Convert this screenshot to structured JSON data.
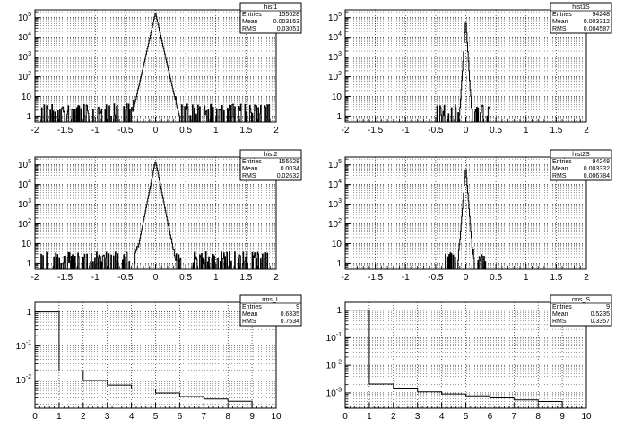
{
  "chart_data": [
    {
      "type": "histogram",
      "stats": {
        "name": "hist1",
        "entries_label": "Entries",
        "entries": "155628",
        "mean_label": "Mean",
        "mean": "0.003153",
        "rms_label": "RMS",
        "rms": "0.03051"
      },
      "x_ticks": [
        "-2",
        "-1.5",
        "-1",
        "-0.5",
        "0",
        "0.5",
        "1",
        "1.5",
        "2"
      ],
      "x_tick_values": [
        -2,
        -1.5,
        -1,
        -0.5,
        0,
        0.5,
        1,
        1.5,
        2
      ],
      "y_ticks": [
        {
          "base": "1",
          "exp": ""
        },
        {
          "base": "10",
          "exp": ""
        },
        {
          "base": "10",
          "exp": "2"
        },
        {
          "base": "10",
          "exp": "3"
        },
        {
          "base": "10",
          "exp": "4"
        },
        {
          "base": "10",
          "exp": "5"
        }
      ],
      "y_tick_values": [
        1,
        10,
        100,
        1000,
        10000,
        100000
      ],
      "xlim": [
        -2,
        2
      ],
      "ylog": true,
      "ylim": [
        0.5,
        250000
      ],
      "grid": true,
      "stats_box": "top-right",
      "profile": "peak",
      "peak_value": 180000,
      "decay": 0.032,
      "floor": 1.3,
      "noise_range": [
        -1.9,
        1.9
      ],
      "noise_level": 1.4
    },
    {
      "type": "histogram",
      "stats": {
        "name": "hist1S",
        "entries_label": "Entries",
        "entries": "94248",
        "mean_label": "Mean",
        "mean": "0.003312",
        "rms_label": "RMS",
        "rms": "0.004587"
      },
      "x_ticks": [
        "-2",
        "-1.5",
        "-1",
        "-0.5",
        "0",
        "0.5",
        "1",
        "1.5",
        "2"
      ],
      "x_tick_values": [
        -2,
        -1.5,
        -1,
        -0.5,
        0,
        0.5,
        1,
        1.5,
        2
      ],
      "y_ticks": [
        {
          "base": "1",
          "exp": ""
        },
        {
          "base": "10",
          "exp": ""
        },
        {
          "base": "10",
          "exp": "2"
        },
        {
          "base": "10",
          "exp": "3"
        },
        {
          "base": "10",
          "exp": "4"
        },
        {
          "base": "10",
          "exp": "5"
        }
      ],
      "y_tick_values": [
        1,
        10,
        100,
        1000,
        10000,
        100000
      ],
      "xlim": [
        -2,
        2
      ],
      "ylog": true,
      "ylim": [
        0.5,
        250000
      ],
      "grid": true,
      "stats_box": "top-right",
      "profile": "peak",
      "peak_value": 90000,
      "decay": 0.009,
      "floor": 0.6,
      "noise_range": [
        -0.5,
        0.4
      ],
      "noise_level": 1.2
    },
    {
      "type": "histogram",
      "stats": {
        "name": "hist2",
        "entries_label": "Entries",
        "entries": "155628",
        "mean_label": "Mean",
        "mean": "0.0034",
        "rms_label": "RMS",
        "rms": "0.02632"
      },
      "x_ticks": [
        "-2",
        "-1.5",
        "-1",
        "-0.5",
        "0",
        "0.5",
        "1",
        "1.5",
        "2"
      ],
      "x_tick_values": [
        -2,
        -1.5,
        -1,
        -0.5,
        0,
        0.5,
        1,
        1.5,
        2
      ],
      "y_ticks": [
        {
          "base": "1",
          "exp": ""
        },
        {
          "base": "10",
          "exp": ""
        },
        {
          "base": "10",
          "exp": "2"
        },
        {
          "base": "10",
          "exp": "3"
        },
        {
          "base": "10",
          "exp": "4"
        },
        {
          "base": "10",
          "exp": "5"
        }
      ],
      "y_tick_values": [
        1,
        10,
        100,
        1000,
        10000,
        100000
      ],
      "xlim": [
        -2,
        2
      ],
      "ylog": true,
      "ylim": [
        0.5,
        250000
      ],
      "grid": true,
      "stats_box": "top-right",
      "profile": "peak",
      "peak_value": 170000,
      "decay": 0.028,
      "floor": 1.1,
      "noise_range": [
        -1.9,
        1.9
      ],
      "noise_level": 1.3
    },
    {
      "type": "histogram",
      "stats": {
        "name": "hist2S",
        "entries_label": "Entries",
        "entries": "94248",
        "mean_label": "Mean",
        "mean": "0.003332",
        "rms_label": "RMS",
        "rms": "0.006784"
      },
      "x_ticks": [
        "-2",
        "-1.5",
        "-1",
        "-0.5",
        "0",
        "0.5",
        "1",
        "1.5",
        "2"
      ],
      "x_tick_values": [
        -2,
        -1.5,
        -1,
        -0.5,
        0,
        0.5,
        1,
        1.5,
        2
      ],
      "y_ticks": [
        {
          "base": "1",
          "exp": ""
        },
        {
          "base": "10",
          "exp": ""
        },
        {
          "base": "10",
          "exp": "2"
        },
        {
          "base": "10",
          "exp": "3"
        },
        {
          "base": "10",
          "exp": "4"
        },
        {
          "base": "10",
          "exp": "5"
        }
      ],
      "y_tick_values": [
        1,
        10,
        100,
        1000,
        10000,
        100000
      ],
      "xlim": [
        -2,
        2
      ],
      "ylog": true,
      "ylim": [
        0.5,
        250000
      ],
      "grid": true,
      "stats_box": "top-right",
      "profile": "peak",
      "peak_value": 88000,
      "decay": 0.011,
      "floor": 0.6,
      "noise_range": [
        -0.35,
        0.35
      ],
      "noise_level": 1.2
    },
    {
      "type": "histogram",
      "stats": {
        "name": "rms_L",
        "entries_label": "Entries",
        "entries": "9",
        "mean_label": "Mean",
        "mean": "0.6335",
        "rms_label": "RMS",
        "rms": "0.7534"
      },
      "x_ticks": [
        "0",
        "1",
        "2",
        "3",
        "4",
        "5",
        "6",
        "7",
        "8",
        "9",
        "10"
      ],
      "x_tick_values": [
        0,
        1,
        2,
        3,
        4,
        5,
        6,
        7,
        8,
        9,
        10
      ],
      "y_ticks": [
        {
          "base": "10",
          "exp": "-2"
        },
        {
          "base": "10",
          "exp": "-1"
        },
        {
          "base": "1",
          "exp": ""
        }
      ],
      "y_tick_values": [
        0.01,
        0.1,
        1
      ],
      "xlim": [
        0,
        10
      ],
      "ylog": true,
      "ylim": [
        0.0015,
        1.9
      ],
      "grid": true,
      "stats_box": "top-right",
      "profile": "steps",
      "bins": [
        [
          0,
          1,
          1.0
        ],
        [
          1,
          2,
          0.0185
        ],
        [
          2,
          3,
          0.0098
        ],
        [
          3,
          4,
          0.0072
        ],
        [
          4,
          5,
          0.0055
        ],
        [
          5,
          6,
          0.0042
        ],
        [
          6,
          7,
          0.0033
        ],
        [
          7,
          8,
          0.0028
        ],
        [
          8,
          9,
          0.0024
        ]
      ]
    },
    {
      "type": "histogram",
      "stats": {
        "name": "rms_S",
        "entries_label": "Entries",
        "entries": "9",
        "mean_label": "Mean",
        "mean": "0.5235",
        "rms_label": "RMS",
        "rms": "0.3357"
      },
      "x_ticks": [
        "0",
        "1",
        "2",
        "3",
        "4",
        "5",
        "6",
        "7",
        "8",
        "9",
        "10"
      ],
      "x_tick_values": [
        0,
        1,
        2,
        3,
        4,
        5,
        6,
        7,
        8,
        9,
        10
      ],
      "y_ticks": [
        {
          "base": "10",
          "exp": "-3"
        },
        {
          "base": "10",
          "exp": "-2"
        },
        {
          "base": "10",
          "exp": "-1"
        },
        {
          "base": "1",
          "exp": ""
        }
      ],
      "y_tick_values": [
        0.001,
        0.01,
        0.1,
        1
      ],
      "xlim": [
        0,
        10
      ],
      "ylog": true,
      "ylim": [
        0.00028,
        1.9
      ],
      "grid": true,
      "stats_box": "top-right",
      "profile": "steps",
      "bins": [
        [
          0,
          1,
          1.0
        ],
        [
          1,
          2,
          0.0021
        ],
        [
          2,
          3,
          0.0015
        ],
        [
          3,
          4,
          0.0011
        ],
        [
          4,
          5,
          0.00092
        ],
        [
          5,
          6,
          0.00078
        ],
        [
          6,
          7,
          0.00066
        ],
        [
          7,
          8,
          0.00056
        ],
        [
          8,
          9,
          0.00049
        ]
      ]
    }
  ]
}
